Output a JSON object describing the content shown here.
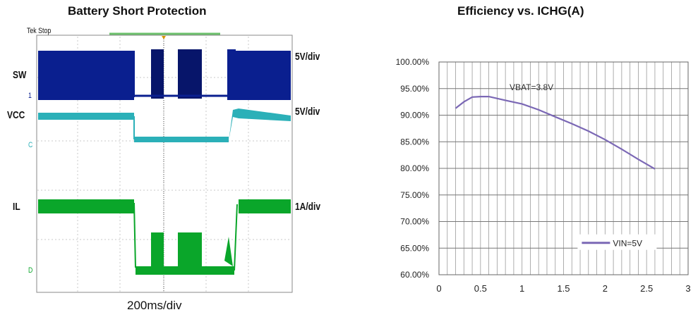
{
  "left_panel": {
    "title": "Battery Short Protection",
    "scope_header": "Tek Stop",
    "channels": [
      {
        "name": "SW",
        "scale": "5V/div",
        "marker": "1"
      },
      {
        "name": "VCC",
        "scale": "5V/div",
        "marker": "C"
      },
      {
        "name": "IL",
        "scale": "1A/div",
        "marker": "D"
      }
    ],
    "timebase": "200ms/div",
    "colors": {
      "sw": "#0a1f8f",
      "vcc": "#2bb0b8",
      "il": "#0aa62a"
    }
  },
  "chart_data": {
    "type": "line",
    "title": "Efficiency vs. ICHG(A)",
    "annotation": "VBAT=3.8V",
    "xlim": [
      0,
      3
    ],
    "ylim": [
      0.6,
      1.0
    ],
    "x_ticks": [
      0,
      0.5,
      1,
      1.5,
      2,
      2.5,
      3
    ],
    "x_tick_labels": [
      "0",
      "0.5",
      "1",
      "1.5",
      "2",
      "2.5",
      "3"
    ],
    "y_ticks": [
      0.6,
      0.65,
      0.7,
      0.75,
      0.8,
      0.85,
      0.9,
      0.95,
      1.0
    ],
    "y_tick_labels": [
      "60.00%",
      "65.00%",
      "70.00%",
      "75.00%",
      "80.00%",
      "85.00%",
      "90.00%",
      "95.00%",
      "100.00%"
    ],
    "grid": true,
    "legend_position": "bottom-right",
    "series": [
      {
        "name": "VIN=5V",
        "color": "#7b68b5",
        "x": [
          0.2,
          0.3,
          0.4,
          0.5,
          0.6,
          0.8,
          1.0,
          1.2,
          1.4,
          1.6,
          1.8,
          2.0,
          2.2,
          2.4,
          2.6
        ],
        "y": [
          0.913,
          0.925,
          0.934,
          0.935,
          0.935,
          0.928,
          0.921,
          0.91,
          0.897,
          0.884,
          0.87,
          0.854,
          0.836,
          0.817,
          0.799
        ]
      }
    ]
  }
}
